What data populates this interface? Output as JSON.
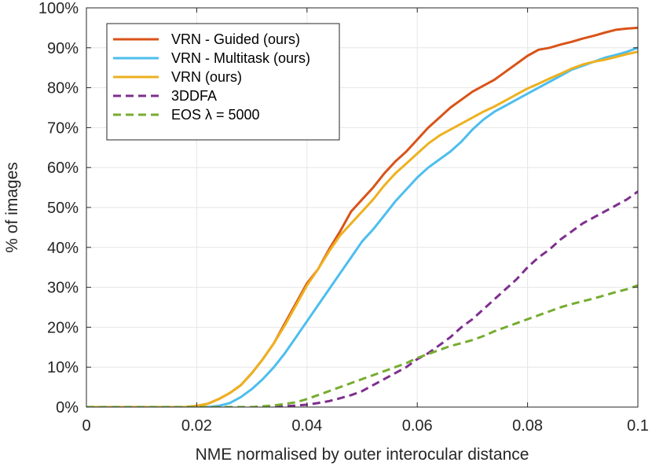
{
  "chart_data": {
    "type": "line",
    "title": "",
    "xlabel": "NME normalised by outer interocular distance",
    "ylabel": "% of images",
    "xlim": [
      0,
      0.1
    ],
    "ylim": [
      0,
      100
    ],
    "grid": true,
    "legend_position": "top-left",
    "x_ticks": [
      0,
      0.02,
      0.04,
      0.06,
      0.08,
      0.1
    ],
    "x_tick_labels": [
      "0",
      "0.02",
      "0.04",
      "0.06",
      "0.08",
      "0.1"
    ],
    "y_ticks": [
      0,
      10,
      20,
      30,
      40,
      50,
      60,
      70,
      80,
      90,
      100
    ],
    "y_tick_labels": [
      "0%",
      "10%",
      "20%",
      "30%",
      "40%",
      "50%",
      "60%",
      "70%",
      "80%",
      "90%",
      "100%"
    ],
    "series": [
      {
        "name": "VRN - Guided (ours)",
        "color": "#D95319",
        "dash": "solid",
        "x": [
          0,
          0.018,
          0.02,
          0.022,
          0.024,
          0.026,
          0.028,
          0.03,
          0.032,
          0.034,
          0.036,
          0.038,
          0.04,
          0.042,
          0.044,
          0.046,
          0.048,
          0.05,
          0.052,
          0.054,
          0.056,
          0.058,
          0.06,
          0.062,
          0.064,
          0.066,
          0.068,
          0.07,
          0.072,
          0.074,
          0.076,
          0.078,
          0.08,
          0.082,
          0.084,
          0.086,
          0.088,
          0.09,
          0.092,
          0.094,
          0.096,
          0.098,
          0.1
        ],
        "y": [
          0,
          0,
          0.3,
          0.8,
          2,
          3.5,
          5.5,
          8.5,
          12,
          16,
          21,
          26,
          31,
          34.5,
          39.5,
          44,
          49,
          52,
          55,
          58.5,
          61.5,
          64,
          67,
          70,
          72.5,
          75,
          77,
          79,
          80.5,
          82,
          84,
          86,
          88,
          89.5,
          90,
          90.8,
          91.5,
          92.3,
          93,
          93.8,
          94.5,
          94.8,
          95
        ]
      },
      {
        "name": "VRN - Multitask (ours)",
        "color": "#4DBEEE",
        "dash": "solid",
        "x": [
          0,
          0.022,
          0.024,
          0.026,
          0.028,
          0.03,
          0.032,
          0.034,
          0.036,
          0.038,
          0.04,
          0.042,
          0.044,
          0.046,
          0.048,
          0.05,
          0.052,
          0.054,
          0.056,
          0.058,
          0.06,
          0.062,
          0.064,
          0.066,
          0.068,
          0.07,
          0.072,
          0.074,
          0.076,
          0.078,
          0.08,
          0.082,
          0.084,
          0.086,
          0.088,
          0.09,
          0.092,
          0.094,
          0.096,
          0.098,
          0.1
        ],
        "y": [
          0,
          0,
          0.3,
          1,
          2.5,
          4.5,
          7,
          10,
          13.5,
          17.5,
          21.5,
          25.5,
          29.5,
          33.5,
          37.5,
          41.5,
          44.5,
          48,
          51.5,
          54.5,
          57.5,
          60,
          62,
          64,
          66.5,
          69.5,
          72,
          74,
          75.5,
          77,
          78.5,
          80,
          81.5,
          83,
          84.5,
          85.5,
          86.5,
          87.5,
          88.2,
          89,
          90
        ]
      },
      {
        "name": "VRN (ours)",
        "color": "#EDB120",
        "dash": "solid",
        "x": [
          0,
          0.018,
          0.02,
          0.022,
          0.024,
          0.026,
          0.028,
          0.03,
          0.032,
          0.034,
          0.036,
          0.038,
          0.04,
          0.042,
          0.044,
          0.046,
          0.048,
          0.05,
          0.052,
          0.054,
          0.056,
          0.058,
          0.06,
          0.062,
          0.064,
          0.066,
          0.068,
          0.07,
          0.072,
          0.074,
          0.076,
          0.078,
          0.08,
          0.082,
          0.084,
          0.086,
          0.088,
          0.09,
          0.092,
          0.094,
          0.096,
          0.098,
          0.1
        ],
        "y": [
          0,
          0,
          0.3,
          0.8,
          2,
          3.5,
          5.5,
          8.5,
          12,
          16,
          20.5,
          25.5,
          30.5,
          34.5,
          39,
          43,
          46,
          49,
          52,
          55.5,
          58.5,
          61,
          63.5,
          66,
          68,
          69.5,
          71,
          72.5,
          74,
          75.3,
          76.8,
          78.3,
          79.8,
          81,
          82.3,
          83.5,
          84.8,
          85.8,
          86.5,
          87,
          87.7,
          88.4,
          89
        ]
      },
      {
        "name": "3DDFA",
        "color": "#7E2F8E",
        "dash": "dashed",
        "x": [
          0,
          0.034,
          0.036,
          0.038,
          0.04,
          0.042,
          0.044,
          0.046,
          0.048,
          0.05,
          0.052,
          0.054,
          0.056,
          0.058,
          0.06,
          0.062,
          0.064,
          0.066,
          0.068,
          0.07,
          0.072,
          0.074,
          0.076,
          0.078,
          0.08,
          0.082,
          0.084,
          0.086,
          0.088,
          0.09,
          0.092,
          0.094,
          0.096,
          0.098,
          0.1
        ],
        "y": [
          0,
          0,
          0.2,
          0.4,
          0.6,
          1,
          1.5,
          2.2,
          3,
          4,
          5.5,
          7,
          8.5,
          10,
          12,
          13.5,
          15.5,
          17.5,
          20,
          22,
          24.5,
          27,
          29.5,
          32,
          35,
          37.5,
          39.5,
          42,
          44,
          46,
          47.5,
          49,
          50.5,
          52,
          54
        ]
      },
      {
        "name": "EOS λ = 5000",
        "color": "#77AC30",
        "dash": "dashed",
        "x": [
          0,
          0.03,
          0.032,
          0.034,
          0.036,
          0.038,
          0.04,
          0.042,
          0.044,
          0.046,
          0.048,
          0.05,
          0.052,
          0.054,
          0.056,
          0.058,
          0.06,
          0.062,
          0.064,
          0.066,
          0.068,
          0.07,
          0.072,
          0.074,
          0.076,
          0.078,
          0.08,
          0.082,
          0.084,
          0.086,
          0.088,
          0.09,
          0.092,
          0.094,
          0.096,
          0.098,
          0.1
        ],
        "y": [
          0,
          0,
          0.2,
          0.4,
          0.8,
          1.2,
          2,
          3,
          4,
          5,
          6,
          7,
          8,
          9,
          10,
          11,
          12.3,
          13.3,
          14.3,
          15.3,
          16,
          16.8,
          17.8,
          19,
          20,
          21,
          22,
          23,
          24,
          25,
          25.8,
          26.5,
          27.2,
          28,
          28.8,
          29.5,
          30.5
        ]
      }
    ],
    "legend": [
      {
        "label": "VRN - Guided (ours)",
        "color": "#D95319",
        "dash": "solid"
      },
      {
        "label": "VRN - Multitask (ours)",
        "color": "#4DBEEE",
        "dash": "solid"
      },
      {
        "label": "VRN (ours)",
        "color": "#EDB120",
        "dash": "solid"
      },
      {
        "label": "3DDFA",
        "color": "#7E2F8E",
        "dash": "dashed"
      },
      {
        "label": "EOS λ = 5000",
        "color": "#77AC30",
        "dash": "dashed"
      }
    ]
  }
}
